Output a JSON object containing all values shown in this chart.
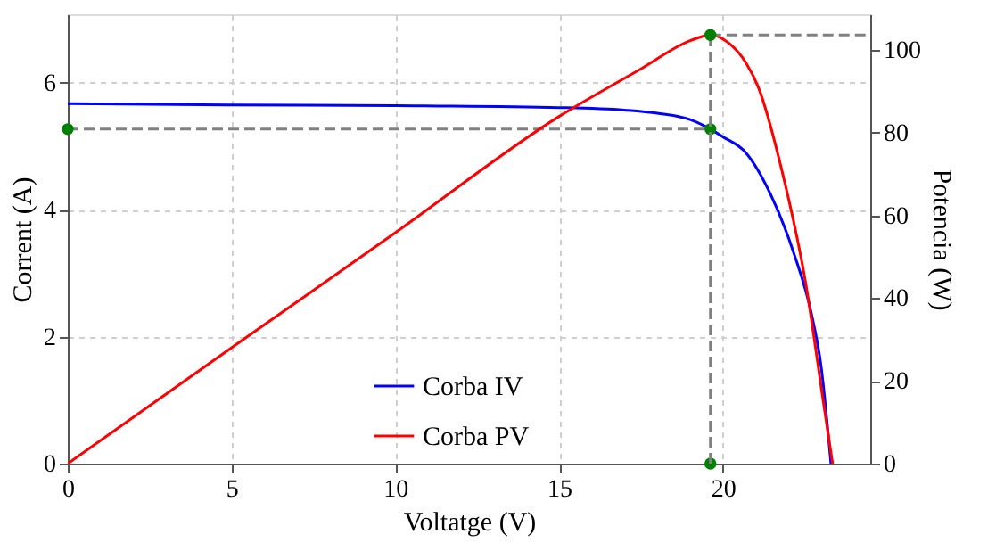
{
  "chart_data": {
    "type": "line",
    "xlabel": "Voltatge (V)",
    "ylabel": "Corrent (A)",
    "y2label": "Potencia (W)",
    "xlim": [
      0,
      24.5
    ],
    "xticks": [
      0,
      5,
      10,
      15,
      20
    ],
    "ylim": [
      0,
      7.08
    ],
    "yticks": [
      0,
      2,
      4,
      6
    ],
    "y2lim": [
      0,
      108.6
    ],
    "y2ticks": [
      0,
      20,
      40,
      60,
      80,
      100
    ],
    "grid": true,
    "legend": "bottom",
    "line_style": "solid",
    "series": [
      {
        "name": "Corba IV",
        "color": "#0000ff",
        "axis": "y",
        "x": [
          0,
          5,
          10,
          15,
          17,
          18,
          19,
          19.62,
          20,
          20.7,
          21.45,
          22.17,
          22.7,
          23,
          23.3
        ],
        "values": [
          5.67,
          5.65,
          5.64,
          5.61,
          5.57,
          5.52,
          5.42,
          5.27,
          5.15,
          4.9,
          4.25,
          3.31,
          2.37,
          1.53,
          0
        ]
      },
      {
        "name": "Corba PV",
        "color": "#ff0000",
        "axis": "y2",
        "x": [
          0,
          5,
          10,
          15,
          17.5,
          19,
          19.62,
          20.2,
          20.71,
          21.08,
          21.8,
          22.53,
          23.07,
          23.35
        ],
        "values": [
          0,
          28,
          55.8,
          83.9,
          95.4,
          102.2,
          103.6,
          101.5,
          96.8,
          91,
          70.9,
          43.6,
          14.8,
          0
        ]
      },
      {
        "type": "line",
        "line_style": "dashed",
        "color": "#808080",
        "axis": "y",
        "x": [
          0,
          19.62
        ],
        "values": [
          5.27,
          5.27
        ]
      },
      {
        "type": "line",
        "line_style": "dashed",
        "color": "#808080",
        "axis": "y2",
        "x": [
          19.62,
          19.62
        ],
        "values": [
          0,
          103.6
        ]
      },
      {
        "type": "line",
        "line_style": "dashed",
        "color": "#808080",
        "axis": "y2",
        "x": [
          19.62,
          24.5
        ],
        "values": [
          103.6,
          103.6
        ]
      },
      {
        "type": "scatter",
        "marker": "circle",
        "color": "#008000",
        "axis": "y",
        "x": [
          0,
          19.62,
          19.62
        ],
        "values": [
          5.27,
          5.27,
          0
        ]
      },
      {
        "type": "scatter",
        "marker": "circle",
        "color": "#008000",
        "axis": "y2",
        "x": [
          19.62
        ],
        "values": [
          103.6
        ]
      }
    ]
  }
}
